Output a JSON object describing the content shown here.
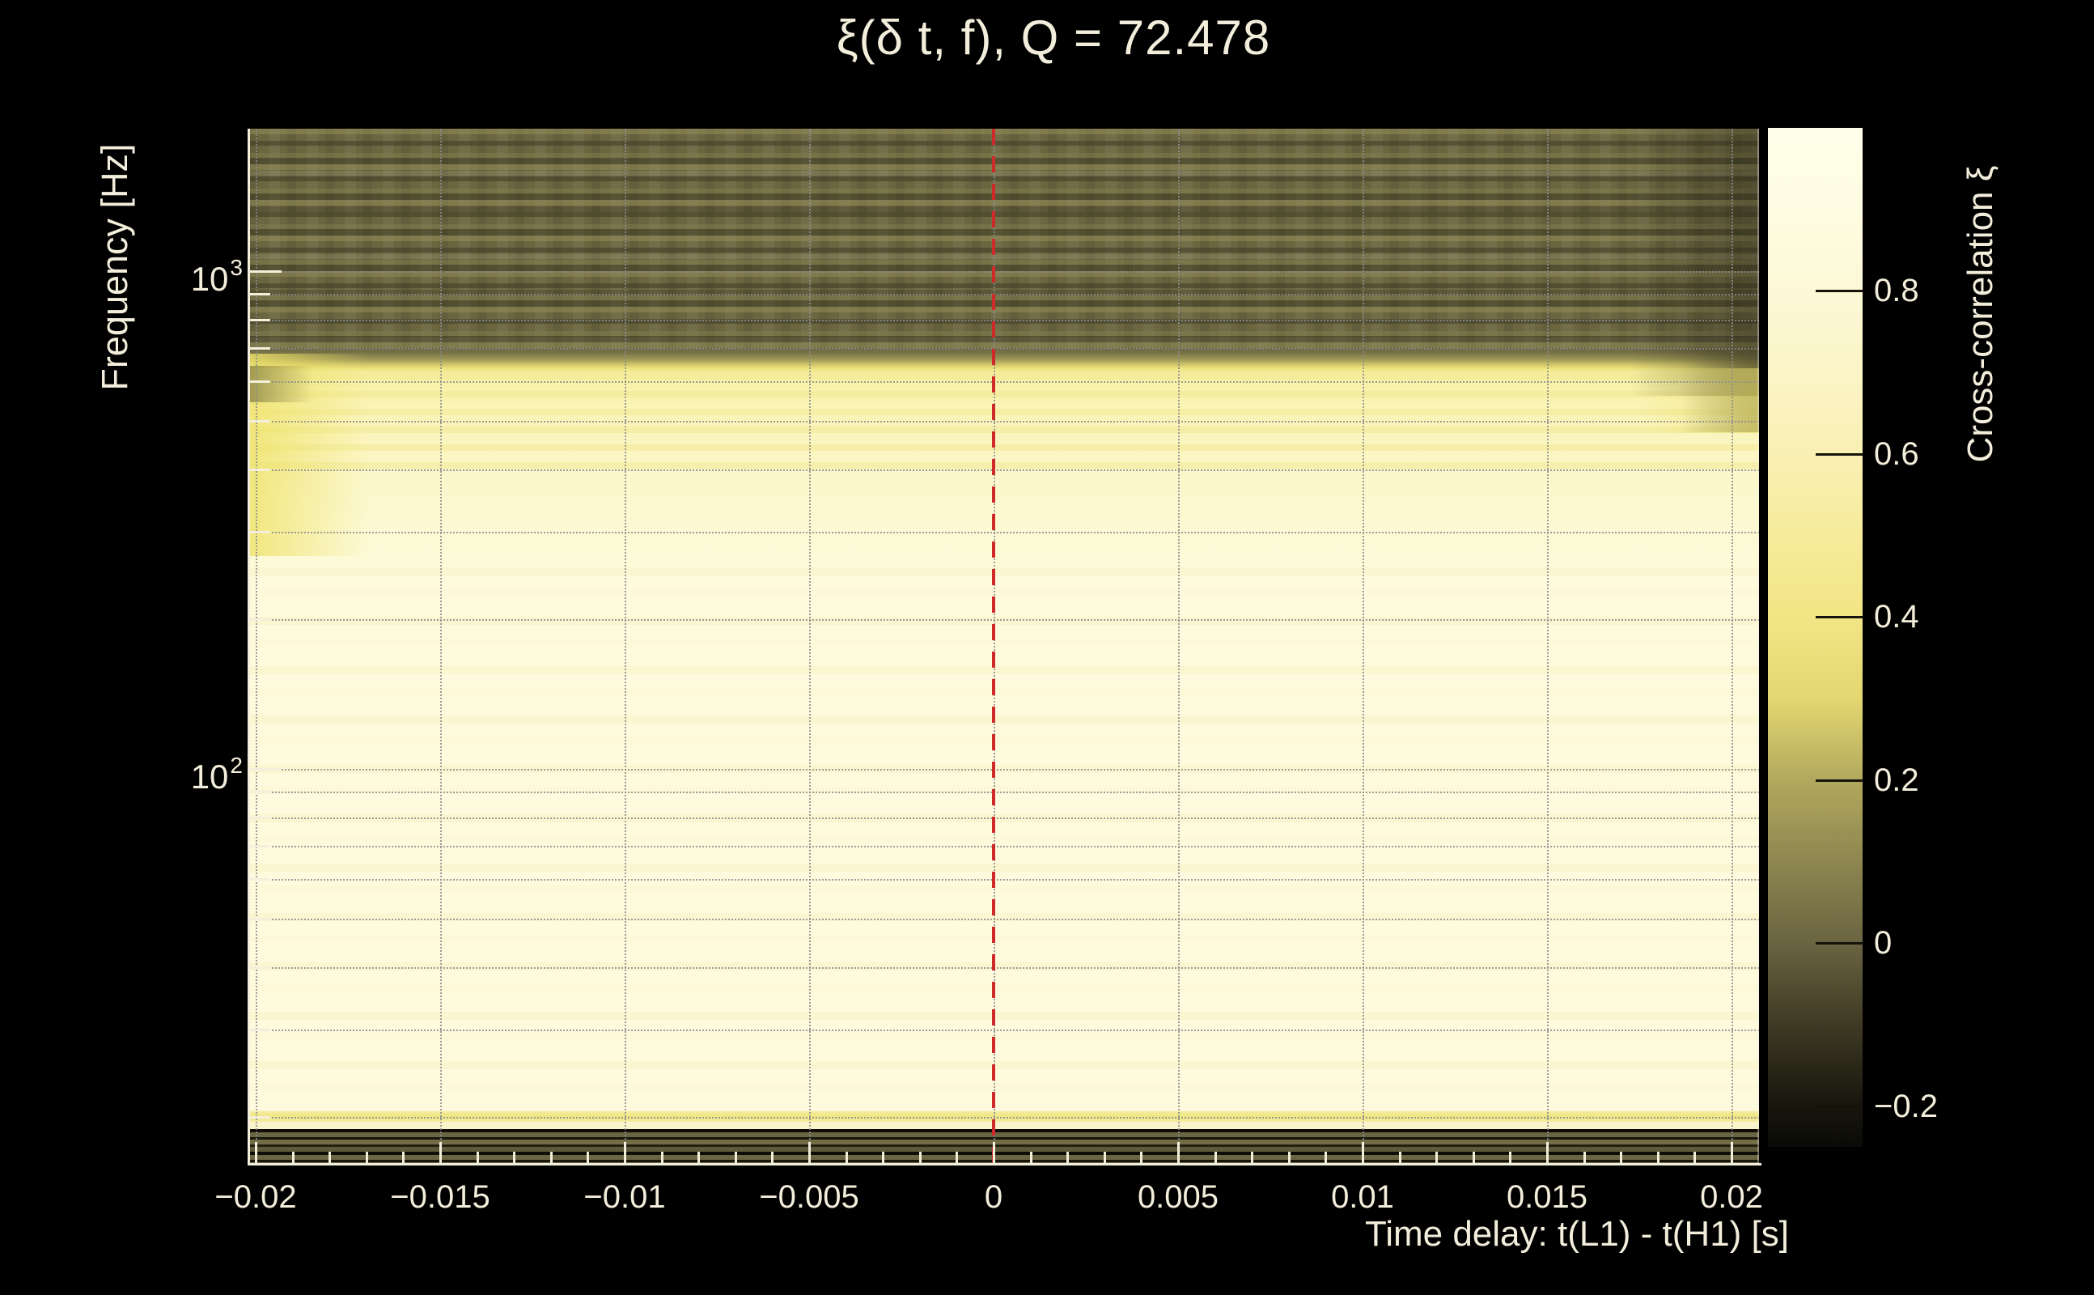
{
  "title": "ξ(δ t, f), Q = 72.478",
  "chart_data": {
    "type": "heatmap",
    "title": "ξ(δ t, f), Q = 72.478",
    "q_value": "72.478",
    "x_axis": {
      "label": "Time delay: t(L1) - t(H1) [s]",
      "tick_values": [
        -0.02,
        -0.015,
        -0.01,
        -0.005,
        0,
        0.005,
        0.01,
        0.015,
        0.02
      ],
      "tick_labels": [
        "−0.02",
        "−0.015",
        "−0.01",
        "−0.005",
        "0",
        "0.005",
        "0.01",
        "0.015",
        "0.02"
      ],
      "minor_tick_step": 0.001,
      "range_s": [
        -0.0202,
        0.0207
      ],
      "grid": true
    },
    "y_axis": {
      "label": "Frequency [Hz]",
      "scale": "log",
      "major_ticks_hz": [
        1000,
        100
      ],
      "major_tick_labels": [
        {
          "base": "10",
          "exp": "3"
        },
        {
          "base": "10",
          "exp": "2"
        }
      ],
      "gridline_freqs_hz": [
        1000,
        900,
        800,
        700,
        600,
        500,
        400,
        300,
        200,
        100,
        90,
        80,
        70,
        60,
        50,
        40,
        30,
        20
      ],
      "range_hz": [
        16,
        1950
      ],
      "grid": true
    },
    "colorbar": {
      "label": "Cross-correlation ξ",
      "tick_values": [
        0.8,
        0.6,
        0.4,
        0.2,
        0,
        -0.2
      ],
      "tick_labels": [
        "0.8",
        "0.6",
        "0.4",
        "0.2",
        "0",
        "−0.2"
      ],
      "range": [
        -0.25,
        1.0
      ],
      "legend_position": "right",
      "colormap_stops": [
        {
          "value": 1.0,
          "color": "#fffee9"
        },
        {
          "value": 0.8,
          "color": "#fcf8d7"
        },
        {
          "value": 0.6,
          "color": "#f9f0b4"
        },
        {
          "value": 0.4,
          "color": "#f2e585"
        },
        {
          "value": 0.2,
          "color": "#b2a95d"
        },
        {
          "value": 0.0,
          "color": "#6a6441"
        },
        {
          "value": -0.2,
          "color": "#17160d"
        },
        {
          "value": -0.25,
          "color": "#0b0a06"
        }
      ]
    },
    "zero_delay_line": {
      "x_s": 0,
      "style": "dashed",
      "color": "#cf2a2a"
    },
    "heatmap_bands": [
      {
        "freq_hz": [
          700,
          1950
        ],
        "xi_range": [
          0.0,
          0.18
        ],
        "appearance": "dark olive horizontal stripes, low correlation"
      },
      {
        "freq_hz": [
          600,
          700
        ],
        "xi_range": [
          0.2,
          0.5
        ],
        "appearance": "transition band"
      },
      {
        "freq_hz": [
          450,
          600
        ],
        "xi_range": [
          0.5,
          0.75
        ],
        "appearance": "bright yellow band, stronger at left and right edges"
      },
      {
        "freq_hz": [
          300,
          450
        ],
        "xi_range": [
          0.78,
          0.92
        ],
        "appearance": "pale yellow"
      },
      {
        "freq_hz": [
          21,
          300
        ],
        "xi_range": [
          0.9,
          1.0
        ],
        "appearance": "cream, near-maximal correlation"
      },
      {
        "freq_hz": [
          19,
          21
        ],
        "xi_range": [
          0.45,
          0.55
        ],
        "appearance": "narrow yellow stripe near 20 Hz"
      },
      {
        "freq_hz": [
          17.5,
          19
        ],
        "xi_range": [
          0.8,
          0.9
        ],
        "appearance": "pale stripe"
      },
      {
        "freq_hz": [
          16,
          17.5
        ],
        "xi_range": [
          -0.15,
          0.25
        ],
        "appearance": "dark olive stripes along bottom edge"
      }
    ]
  },
  "colors": {
    "background": "#000000",
    "text": "#f3eedb",
    "grid": "#8c8c8c",
    "axis": "#f4efdc",
    "zero_line": "#cf2a2a"
  }
}
